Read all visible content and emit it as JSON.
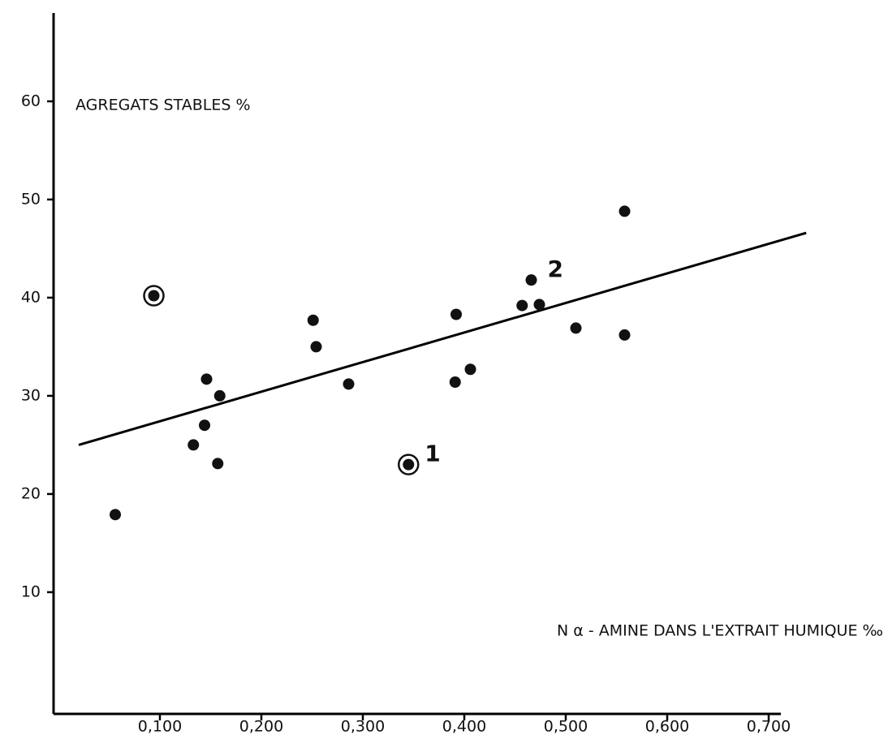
{
  "chart_data": {
    "type": "scatter",
    "y_label": "AGREGATS STABLES %",
    "x_label": "N α - AMINE DANS L'EXTRAIT HUMIQUE ‰",
    "x": [
      0.056,
      0.094,
      0.133,
      0.144,
      0.146,
      0.157,
      0.159,
      0.251,
      0.254,
      0.286,
      0.345,
      0.391,
      0.392,
      0.406,
      0.457,
      0.466,
      0.474,
      0.51,
      0.558,
      0.558
    ],
    "values": [
      17.9,
      40.2,
      25.0,
      27.0,
      31.7,
      23.1,
      30.0,
      37.7,
      35.0,
      31.2,
      23.0,
      31.4,
      38.3,
      32.7,
      39.2,
      41.8,
      39.3,
      36.9,
      48.8,
      36.2
    ],
    "color": "#111111",
    "circled": [
      1,
      10
    ],
    "annotations": [
      {
        "text": "1",
        "point": 10
      },
      {
        "text": "2",
        "point": 15
      }
    ],
    "trendline": {
      "x": [
        0.02,
        0.737
      ],
      "y": [
        25.0,
        46.6
      ]
    },
    "xlim": [
      0,
      0.74
    ],
    "ylim": [
      -2.4,
      69
    ],
    "xticks": [
      {
        "value": 0.1,
        "label": "0,100"
      },
      {
        "value": 0.2,
        "label": "0,200"
      },
      {
        "value": 0.3,
        "label": "0,300"
      },
      {
        "value": 0.4,
        "label": "0,400"
      },
      {
        "value": 0.5,
        "label": "0,500"
      },
      {
        "value": 0.6,
        "label": "0,600"
      },
      {
        "value": 0.7,
        "label": "0,700"
      }
    ],
    "yticks": [
      10,
      20,
      30,
      40,
      50,
      60
    ]
  }
}
